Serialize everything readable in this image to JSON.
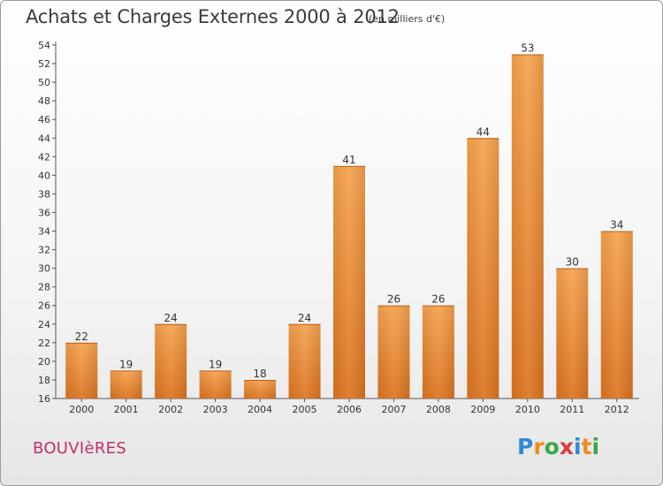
{
  "title": "Achats et Charges Externes 2000 à 2012",
  "subtitle": "(en milliers d'€)",
  "commune": "BOUVIèRES",
  "logo": {
    "letters": [
      "P",
      "r",
      "o",
      "x",
      "i",
      "t",
      "i"
    ],
    "colors": [
      "#2e8ad6",
      "#f08a1c",
      "#3aa845",
      "#e03a3a",
      "#2e8ad6",
      "#f08a1c",
      "#3aa845"
    ]
  },
  "chart_data": {
    "type": "bar",
    "categories": [
      "2000",
      "2001",
      "2002",
      "2003",
      "2004",
      "2005",
      "2006",
      "2007",
      "2008",
      "2009",
      "2010",
      "2011",
      "2012"
    ],
    "values": [
      22,
      19,
      24,
      19,
      18,
      24,
      41,
      26,
      26,
      44,
      53,
      30,
      34
    ],
    "ylim": [
      16,
      54
    ],
    "ytick_step": 2,
    "grid": false,
    "bar_color": "#f0903a"
  }
}
